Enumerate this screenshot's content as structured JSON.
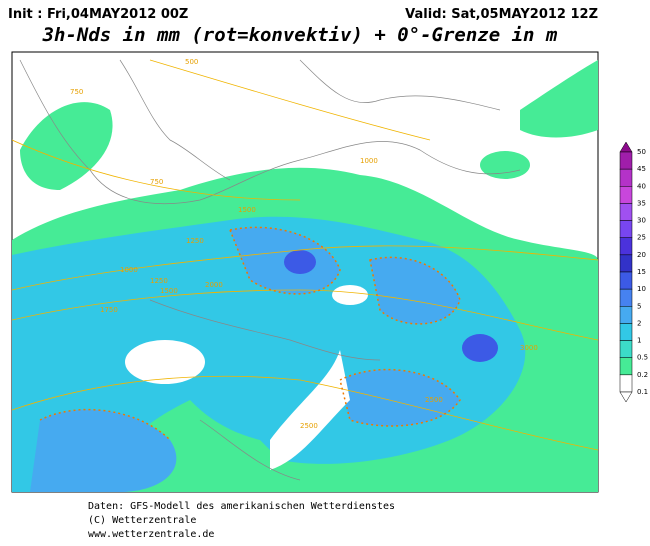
{
  "header": {
    "init": "Init : Fri,04MAY2012 00Z",
    "valid": "Valid: Sat,05MAY2012 12Z",
    "title": "3h-Nds in mm (rot=konvektiv) + 0°-Grenze in m"
  },
  "legend": {
    "levels": [
      "50",
      "45",
      "40",
      "35",
      "30",
      "25",
      "20",
      "15",
      "10",
      "5",
      "2",
      "1",
      "0.5",
      "0.2",
      "0.1"
    ],
    "colors": [
      "#8c0a8c",
      "#a01eaa",
      "#b432c8",
      "#c846dc",
      "#a050f0",
      "#7846f0",
      "#4b32dc",
      "#3232c8",
      "#3c5ae6",
      "#4682f0",
      "#46aaf0",
      "#32c8e6",
      "#3cdcc8",
      "#46eb96",
      "#ffffff"
    ]
  },
  "contour_labels": [
    "500",
    "750",
    "750",
    "1000",
    "1000",
    "1250",
    "1250",
    "1500",
    "1750",
    "2000",
    "2500",
    "2500",
    "3000",
    "1500"
  ],
  "footer": [
    "Daten: GFS-Modell des amerikanischen Wetterdienstes",
    "(C) Wetterzentrale",
    "www.wetterzentrale.de"
  ]
}
